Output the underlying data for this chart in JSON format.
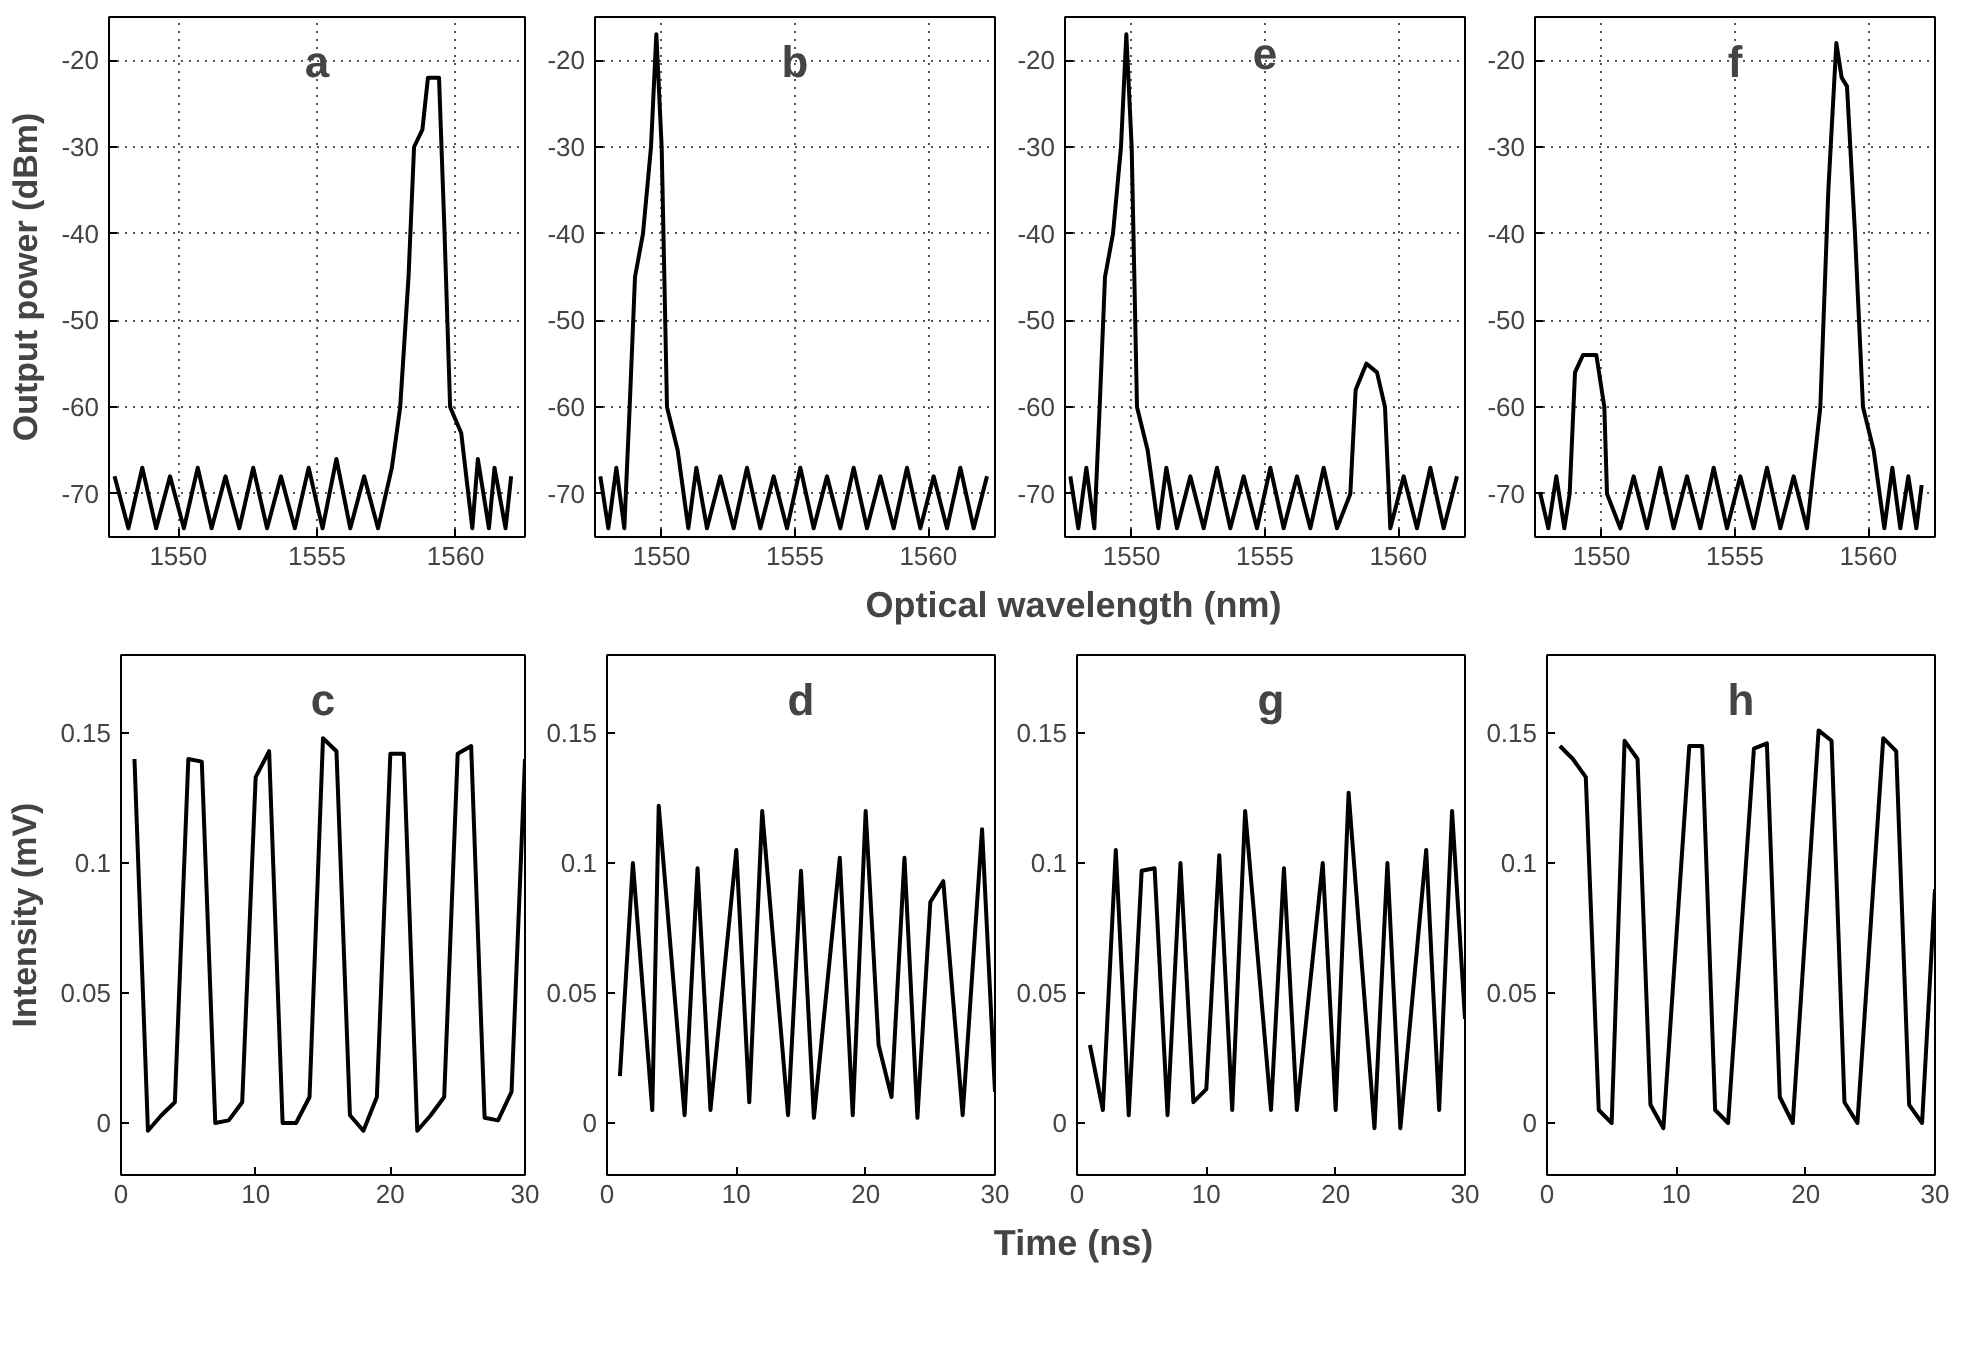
{
  "chart_data": [
    {
      "type": "line",
      "title": "a",
      "ylabel": "Output power (dBm)",
      "xlim": [
        1547.5,
        1562.5
      ],
      "ylim": [
        -75,
        -15
      ],
      "xticks": [
        1550,
        1555,
        1560
      ],
      "yticks": [
        -70,
        -60,
        -50,
        -40,
        -30,
        -20
      ],
      "grid": true,
      "tick_labels": "xy",
      "series": [
        {
          "color": "#000000",
          "x": [
            1547.7,
            1548.2,
            1548.7,
            1549.2,
            1549.7,
            1550.2,
            1550.7,
            1551.2,
            1551.7,
            1552.2,
            1552.7,
            1553.2,
            1553.7,
            1554.2,
            1554.7,
            1555.2,
            1555.7,
            1556.2,
            1556.7,
            1557.2,
            1557.7,
            1558.0,
            1558.3,
            1558.5,
            1558.8,
            1559.0,
            1559.4,
            1559.6,
            1559.8,
            1560.2,
            1560.6,
            1560.8,
            1561.2,
            1561.4,
            1561.8,
            1562.0
          ],
          "values": [
            -68,
            -74,
            -67,
            -74,
            -68,
            -74,
            -67,
            -74,
            -68,
            -74,
            -67,
            -74,
            -68,
            -74,
            -67,
            -74,
            -66,
            -74,
            -68,
            -74,
            -67,
            -60,
            -45,
            -30,
            -28,
            -22,
            -22,
            -40,
            -60,
            -63,
            -74,
            -66,
            -74,
            -67,
            -74,
            -68
          ]
        }
      ]
    },
    {
      "type": "line",
      "title": "b",
      "xlabel": "Optical wavelength (nm)",
      "xlim": [
        1547.5,
        1562.5
      ],
      "ylim": [
        -75,
        -15
      ],
      "xticks": [
        1550,
        1555,
        1560
      ],
      "yticks": [
        -70,
        -60,
        -50,
        -40,
        -30,
        -20
      ],
      "grid": true,
      "series": [
        {
          "color": "#000000",
          "x": [
            1547.7,
            1548.0,
            1548.3,
            1548.6,
            1548.8,
            1549.0,
            1549.3,
            1549.6,
            1549.8,
            1550.0,
            1550.2,
            1550.6,
            1551.0,
            1551.3,
            1551.7,
            1552.2,
            1552.7,
            1553.2,
            1553.7,
            1554.2,
            1554.7,
            1555.2,
            1555.7,
            1556.2,
            1556.7,
            1557.2,
            1557.7,
            1558.2,
            1558.7,
            1559.2,
            1559.7,
            1560.2,
            1560.7,
            1561.2,
            1561.7,
            1562.2
          ],
          "values": [
            -68,
            -74,
            -67,
            -74,
            -60,
            -45,
            -40,
            -30,
            -17,
            -30,
            -60,
            -65,
            -74,
            -67,
            -74,
            -68,
            -74,
            -67,
            -74,
            -68,
            -74,
            -67,
            -74,
            -68,
            -74,
            -67,
            -74,
            -68,
            -74,
            -67,
            -74,
            -68,
            -74,
            -67,
            -74,
            -68
          ]
        }
      ]
    },
    {
      "type": "line",
      "title": "e",
      "xlim": [
        1547.5,
        1562.5
      ],
      "ylim": [
        -75,
        -15
      ],
      "xticks": [
        1550,
        1555,
        1560
      ],
      "yticks": [
        -70,
        -60,
        -50,
        -40,
        -30,
        -20
      ],
      "grid": true,
      "series": [
        {
          "color": "#000000",
          "x": [
            1547.7,
            1548.0,
            1548.3,
            1548.6,
            1548.8,
            1549.0,
            1549.3,
            1549.6,
            1549.8,
            1550.0,
            1550.2,
            1550.6,
            1551.0,
            1551.3,
            1551.7,
            1552.2,
            1552.7,
            1553.2,
            1553.7,
            1554.2,
            1554.7,
            1555.2,
            1555.7,
            1556.2,
            1556.7,
            1557.2,
            1557.7,
            1558.2,
            1558.4,
            1558.8,
            1559.2,
            1559.5,
            1559.7,
            1560.2,
            1560.7,
            1561.2,
            1561.7,
            1562.2
          ],
          "values": [
            -68,
            -74,
            -67,
            -74,
            -60,
            -45,
            -40,
            -30,
            -17,
            -30,
            -60,
            -65,
            -74,
            -67,
            -74,
            -68,
            -74,
            -67,
            -74,
            -68,
            -74,
            -67,
            -74,
            -68,
            -74,
            -67,
            -74,
            -70,
            -58,
            -55,
            -56,
            -60,
            -74,
            -68,
            -74,
            -67,
            -74,
            -68
          ]
        }
      ]
    },
    {
      "type": "line",
      "title": "f",
      "xlim": [
        1547.5,
        1562.5
      ],
      "ylim": [
        -75,
        -15
      ],
      "xticks": [
        1550,
        1555,
        1560
      ],
      "yticks": [
        -70,
        -60,
        -50,
        -40,
        -30,
        -20
      ],
      "grid": true,
      "series": [
        {
          "color": "#000000",
          "x": [
            1547.7,
            1548.0,
            1548.3,
            1548.6,
            1548.8,
            1549.0,
            1549.3,
            1549.8,
            1550.1,
            1550.2,
            1550.7,
            1551.2,
            1551.7,
            1552.2,
            1552.7,
            1553.2,
            1553.7,
            1554.2,
            1554.7,
            1555.2,
            1555.7,
            1556.2,
            1556.7,
            1557.2,
            1557.7,
            1558.2,
            1558.5,
            1558.8,
            1559.0,
            1559.2,
            1559.5,
            1559.8,
            1560.2,
            1560.6,
            1560.9,
            1561.2,
            1561.5,
            1561.8,
            1562.0
          ],
          "values": [
            -70,
            -74,
            -68,
            -74,
            -70,
            -56,
            -54,
            -54,
            -60,
            -70,
            -74,
            -68,
            -74,
            -67,
            -74,
            -68,
            -74,
            -67,
            -74,
            -68,
            -74,
            -67,
            -74,
            -68,
            -74,
            -60,
            -35,
            -18,
            -22,
            -23,
            -40,
            -60,
            -65,
            -74,
            -67,
            -74,
            -68,
            -74,
            -69
          ]
        }
      ]
    },
    {
      "type": "line",
      "title": "c",
      "ylabel": "Intensity (mV)",
      "xlim": [
        0,
        30
      ],
      "ylim": [
        -0.02,
        0.18
      ],
      "xticks": [
        0,
        10,
        20,
        30
      ],
      "yticks": [
        0,
        0.05,
        0.1,
        0.15
      ],
      "series": [
        {
          "color": "#000000",
          "x": [
            1,
            2,
            3,
            4,
            5,
            6,
            7,
            8,
            9,
            10,
            11,
            12,
            13,
            14,
            15,
            16,
            17,
            18,
            19,
            20,
            21,
            22,
            23,
            24,
            25,
            26,
            27,
            28,
            29,
            30
          ],
          "values": [
            0.14,
            -0.003,
            0.003,
            0.008,
            0.14,
            0.139,
            0,
            0.001,
            0.008,
            0.133,
            0.143,
            0,
            0,
            0.01,
            0.148,
            0.143,
            0.003,
            -0.003,
            0.01,
            0.142,
            0.142,
            -0.003,
            0.003,
            0.01,
            0.142,
            0.145,
            0.002,
            0.001,
            0.012,
            0.14
          ]
        }
      ]
    },
    {
      "type": "line",
      "title": "d",
      "xlabel": "Time (ns)",
      "xlim": [
        0,
        30
      ],
      "ylim": [
        -0.02,
        0.18
      ],
      "xticks": [
        0,
        10,
        20,
        30
      ],
      "yticks": [
        0,
        0.05,
        0.1,
        0.15
      ],
      "series": [
        {
          "color": "#000000",
          "x": [
            1,
            2,
            3.5,
            4,
            6,
            7,
            8,
            10,
            11,
            12,
            14,
            15,
            16,
            18,
            19,
            20,
            21,
            22,
            23,
            24,
            25,
            26,
            27.5,
            29,
            30
          ],
          "values": [
            0.018,
            0.1,
            0.005,
            0.122,
            0.003,
            0.098,
            0.005,
            0.105,
            0.008,
            0.12,
            0.003,
            0.097,
            0.002,
            0.102,
            0.003,
            0.12,
            0.03,
            0.01,
            0.102,
            0.002,
            0.085,
            0.093,
            0.003,
            0.113,
            0.012
          ]
        }
      ]
    },
    {
      "type": "line",
      "title": "g",
      "xlim": [
        0,
        30
      ],
      "ylim": [
        -0.02,
        0.18
      ],
      "xticks": [
        0,
        10,
        20,
        30
      ],
      "yticks": [
        0,
        0.05,
        0.1,
        0.15
      ],
      "series": [
        {
          "color": "#000000",
          "x": [
            1,
            2,
            3,
            4,
            5,
            6,
            7,
            8,
            9,
            10,
            11,
            12,
            13,
            15,
            16,
            17,
            19,
            20,
            21,
            23,
            24,
            25,
            27,
            28,
            29,
            30
          ],
          "values": [
            0.03,
            0.005,
            0.105,
            0.003,
            0.097,
            0.098,
            0.003,
            0.1,
            0.008,
            0.013,
            0.103,
            0.005,
            0.12,
            0.005,
            0.098,
            0.005,
            0.1,
            0.005,
            0.127,
            -0.002,
            0.1,
            -0.002,
            0.105,
            0.005,
            0.12,
            0.04
          ]
        }
      ]
    },
    {
      "type": "line",
      "title": "h",
      "xlim": [
        0,
        30
      ],
      "ylim": [
        -0.02,
        0.18
      ],
      "xticks": [
        0,
        10,
        20,
        30
      ],
      "yticks": [
        0,
        0.05,
        0.1,
        0.15
      ],
      "series": [
        {
          "color": "#000000",
          "x": [
            1,
            2,
            3,
            4,
            5,
            6,
            7,
            8,
            9,
            11,
            12,
            13,
            14,
            16,
            17,
            18,
            19,
            21,
            22,
            23,
            24,
            26,
            27,
            28,
            29,
            30
          ],
          "values": [
            0.145,
            0.14,
            0.133,
            0.005,
            0,
            0.147,
            0.14,
            0.007,
            -0.002,
            0.145,
            0.145,
            0.005,
            0,
            0.144,
            0.146,
            0.01,
            0,
            0.151,
            0.147,
            0.008,
            0,
            0.148,
            0.143,
            0.007,
            0,
            0.09
          ]
        }
      ]
    }
  ]
}
